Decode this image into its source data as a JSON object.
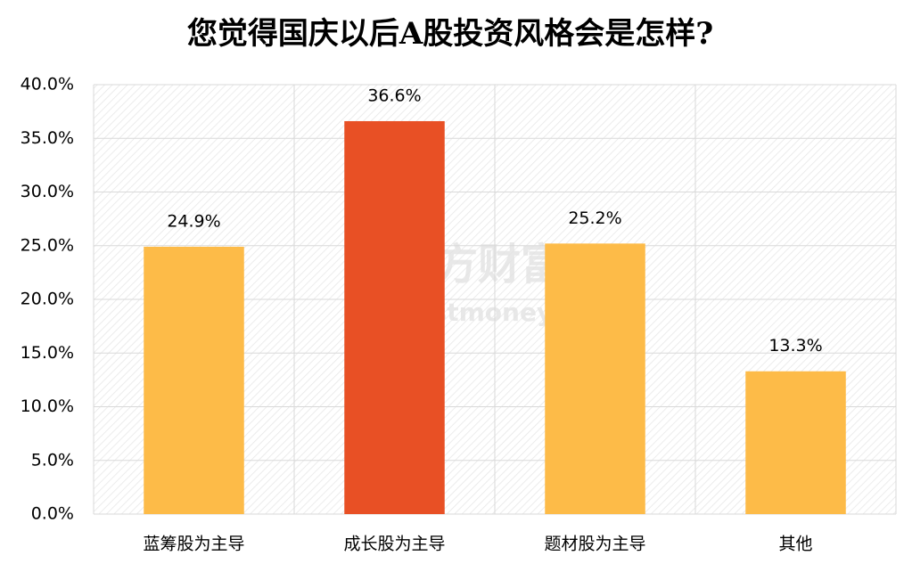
{
  "chart_data": {
    "type": "bar",
    "title": "您觉得国庆以后A股投资风格会是怎样?",
    "categories": [
      "蓝筹股为主导",
      "成长股为主导",
      "题材股为主导",
      "其他"
    ],
    "values": [
      24.9,
      36.6,
      25.2,
      13.3
    ],
    "value_labels": [
      "24.9%",
      "36.6%",
      "25.2%",
      "13.3%"
    ],
    "colors": [
      "#fdbb48",
      "#e85025",
      "#fdbb48",
      "#fdbb48"
    ],
    "ylim": [
      0,
      40
    ],
    "yticks": [
      {
        "value": 0,
        "label": "0.0%"
      },
      {
        "value": 5,
        "label": "5.0%"
      },
      {
        "value": 10,
        "label": "10.0%"
      },
      {
        "value": 15,
        "label": "15.0%"
      },
      {
        "value": 20,
        "label": "20.0%"
      },
      {
        "value": 25,
        "label": "25.0%"
      },
      {
        "value": 30,
        "label": "30.0%"
      },
      {
        "value": 35,
        "label": "35.0%"
      },
      {
        "value": 40,
        "label": "40.0%"
      }
    ],
    "grid": true,
    "watermark": [
      "东方财富网",
      "eastmoney.com"
    ]
  }
}
